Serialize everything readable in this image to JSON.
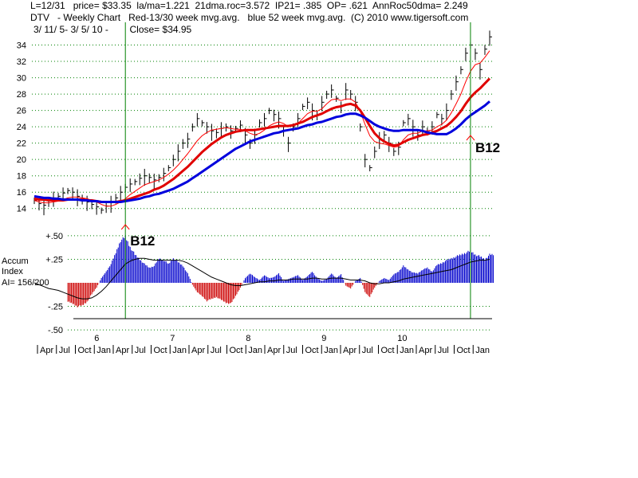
{
  "header": {
    "line1": "L=12/31   price= $33.35  la/ma=1.221  21dma.roc=3.572  IP21= .385  OP= .621  AnnRoc50dma= 2.249",
    "line2": "DTV   - Weekly Chart   Red-13/30 week mvg.avg.   blue 52 week mvg.avg.  (C) 2010 www.tigersoft.com",
    "line3": "3/ 11/ 5- 3/ 5/ 10 -        Close= $34.95"
  },
  "colors": {
    "ma13": "#ff0000",
    "ma30": "#e00000",
    "ma52": "#0000dd",
    "accum_pos": "#0000cc",
    "accum_neg": "#cc0000",
    "grid": "#008000",
    "signal_line": "#008000",
    "arrow": "#ff0000"
  },
  "chart_data": [
    {
      "type": "line",
      "title": "DTV - Weekly Chart",
      "x_axis": {
        "years": [
          "6",
          "7",
          "8",
          "9",
          "10"
        ],
        "month_ticks": [
          "Apr",
          "Jul",
          "Oct",
          "Jan",
          "Apr",
          "Jul",
          "Oct",
          "Jan",
          "Apr",
          "Jul",
          "Oct",
          "Jan",
          "Apr",
          "Jul",
          "Oct",
          "Jan",
          "Apr",
          "Jul",
          "Oct",
          "Jan",
          "Apr",
          "Jul",
          "Oct",
          "Jan"
        ],
        "range": [
          "2005-03",
          "2010-03"
        ]
      },
      "y_axis": {
        "ticks": [
          14,
          16,
          18,
          20,
          22,
          24,
          26,
          28,
          30,
          32,
          34
        ],
        "ylim": [
          13,
          36
        ]
      },
      "grid": "horizontal dotted",
      "series": [
        {
          "name": "Price",
          "style": "weekly high-low bars",
          "color": "#000000",
          "values": [
            15.0,
            14.6,
            14.4,
            14.9,
            15.3,
            15.5,
            15.9,
            16.2,
            16.0,
            15.5,
            15.2,
            14.8,
            14.5,
            14.2,
            13.8,
            14.3,
            14.7,
            15.3,
            16.0,
            16.6,
            17.0,
            17.3,
            17.7,
            18.0,
            17.8,
            17.5,
            17.8,
            18.3,
            19.0,
            20.0,
            21.0,
            22.0,
            22.5,
            24.0,
            25.0,
            24.5,
            24.0,
            23.5,
            23.3,
            23.8,
            24.0,
            23.5,
            23.8,
            24.2,
            23.0,
            22.0,
            23.0,
            24.5,
            25.0,
            26.0,
            25.5,
            25.0,
            23.5,
            22.0,
            24.0,
            25.0,
            26.5,
            27.0,
            26.0,
            25.5,
            27.0,
            28.0,
            28.5,
            27.5,
            26.5,
            28.5,
            28.0,
            27.0,
            24.0,
            20.0,
            19.0,
            21.0,
            22.5,
            23.0,
            22.0,
            21.0,
            21.5,
            24.5,
            25.0,
            24.0,
            23.0,
            24.0,
            23.5,
            24.0,
            25.5,
            25.0,
            26.0,
            28.0,
            29.5,
            31.0,
            33.0,
            34.0,
            33.0,
            31.0,
            33.5,
            35.0
          ]
        },
        {
          "name": "13 week mvg.avg.",
          "color": "#ff0000",
          "values": [
            15.0,
            14.8,
            14.7,
            14.7,
            14.8,
            14.9,
            15.1,
            15.3,
            15.4,
            15.4,
            15.3,
            15.2,
            15.0,
            14.8,
            14.5,
            14.3,
            14.3,
            14.5,
            14.8,
            15.2,
            15.7,
            16.1,
            16.5,
            16.9,
            17.1,
            17.3,
            17.5,
            17.8,
            18.2,
            18.7,
            19.3,
            20.0,
            20.7,
            21.5,
            22.3,
            22.9,
            23.3,
            23.6,
            23.7,
            23.8,
            23.9,
            23.8,
            23.7,
            23.7,
            23.5,
            23.2,
            23.0,
            23.2,
            23.6,
            24.1,
            24.4,
            24.6,
            24.4,
            24.0,
            24.1,
            24.4,
            25.0,
            25.6,
            25.9,
            25.9,
            26.2,
            26.8,
            27.3,
            27.4,
            27.2,
            27.4,
            27.4,
            27.0,
            25.9,
            24.3,
            22.9,
            22.2,
            22.0,
            21.9,
            21.7,
            21.5,
            21.6,
            22.4,
            23.0,
            23.2,
            23.2,
            23.5,
            23.5,
            23.6,
            24.0,
            24.3,
            24.8,
            25.7,
            26.8,
            28.0,
            29.5,
            30.8,
            31.6,
            31.8,
            32.5,
            33.3
          ]
        },
        {
          "name": "30 week mvg.avg.",
          "color": "#e00000",
          "values": [
            15.2,
            15.1,
            15.1,
            15.0,
            15.0,
            15.0,
            15.0,
            15.1,
            15.1,
            15.1,
            15.1,
            15.0,
            15.0,
            14.9,
            14.8,
            14.8,
            14.8,
            14.8,
            14.9,
            15.0,
            15.2,
            15.4,
            15.6,
            15.8,
            16.0,
            16.3,
            16.5,
            16.8,
            17.2,
            17.6,
            18.1,
            18.6,
            19.1,
            19.7,
            20.3,
            20.9,
            21.4,
            21.9,
            22.3,
            22.7,
            23.0,
            23.2,
            23.4,
            23.5,
            23.6,
            23.6,
            23.6,
            23.7,
            23.8,
            23.9,
            24.0,
            24.1,
            24.1,
            24.1,
            24.2,
            24.4,
            24.6,
            24.9,
            25.2,
            25.4,
            25.6,
            25.9,
            26.2,
            26.4,
            26.5,
            26.7,
            26.8,
            26.6,
            26.0,
            25.1,
            24.1,
            23.2,
            22.6,
            22.2,
            21.9,
            21.7,
            21.8,
            22.1,
            22.4,
            22.6,
            22.8,
            23.0,
            23.1,
            23.3,
            23.5,
            23.8,
            24.1,
            24.6,
            25.2,
            25.9,
            26.8,
            27.6,
            28.2,
            28.7,
            29.3,
            29.9
          ]
        },
        {
          "name": "52 week mvg.avg.",
          "color": "#0000dd",
          "values": [
            15.5,
            15.4,
            15.3,
            15.3,
            15.2,
            15.2,
            15.1,
            15.1,
            15.1,
            15.1,
            15.0,
            15.0,
            14.9,
            14.9,
            14.8,
            14.8,
            14.8,
            14.8,
            14.8,
            14.9,
            15.0,
            15.1,
            15.2,
            15.4,
            15.5,
            15.7,
            15.8,
            16.0,
            16.2,
            16.4,
            16.7,
            17.0,
            17.3,
            17.7,
            18.1,
            18.5,
            18.9,
            19.3,
            19.7,
            20.1,
            20.5,
            20.9,
            21.3,
            21.6,
            21.9,
            22.2,
            22.4,
            22.6,
            22.8,
            23.0,
            23.2,
            23.3,
            23.5,
            23.6,
            23.7,
            23.8,
            24.0,
            24.2,
            24.3,
            24.5,
            24.6,
            24.8,
            25.0,
            25.2,
            25.3,
            25.5,
            25.6,
            25.6,
            25.4,
            25.1,
            24.7,
            24.3,
            24.0,
            23.8,
            23.6,
            23.5,
            23.5,
            23.6,
            23.6,
            23.6,
            23.6,
            23.5,
            23.3,
            23.2,
            23.1,
            23.1,
            23.1,
            23.4,
            23.8,
            24.3,
            24.9,
            25.4,
            25.8,
            26.2,
            26.6,
            27.1
          ]
        }
      ],
      "annotations": [
        {
          "label": "B12",
          "x_index": 19
        },
        {
          "label": "B12",
          "x_index": 91
        }
      ]
    },
    {
      "type": "bar",
      "title": "Accum Index",
      "label_lines": [
        "Accum",
        "Index",
        "AI= 156/200"
      ],
      "y_axis": {
        "ticks": [
          "+.50",
          "+.25",
          "-.25",
          "-.50"
        ],
        "ylim": [
          -0.55,
          0.55
        ]
      },
      "grid": "horizontal dotted",
      "values": [
        -0.05,
        -0.1,
        -0.14,
        -0.16,
        -0.12,
        -0.1,
        -0.18,
        -0.2,
        -0.22,
        -0.25,
        -0.24,
        -0.2,
        -0.12,
        -0.05,
        0.05,
        0.12,
        0.2,
        0.32,
        0.45,
        0.49,
        0.38,
        0.3,
        0.25,
        0.2,
        0.16,
        0.18,
        0.26,
        0.24,
        0.2,
        0.26,
        0.22,
        0.18,
        0.1,
        -0.02,
        -0.1,
        -0.14,
        -0.19,
        -0.17,
        -0.15,
        -0.18,
        -0.21,
        -0.22,
        -0.14,
        -0.05,
        0.05,
        0.1,
        0.06,
        0.03,
        0.08,
        0.05,
        0.06,
        0.1,
        0.02,
        0.04,
        0.06,
        0.08,
        0.03,
        0.07,
        0.12,
        0.05,
        0.02,
        0.04,
        0.1,
        0.05,
        0.09,
        -0.03,
        -0.06,
        0.02,
        0.05,
        -0.1,
        -0.15,
        -0.05,
        0.02,
        0.05,
        0.03,
        0.09,
        0.12,
        0.18,
        0.14,
        0.11,
        0.1,
        0.14,
        0.16,
        0.12,
        0.19,
        0.21,
        0.24,
        0.26,
        0.28,
        0.3,
        0.32,
        0.34,
        0.3,
        0.28,
        0.25,
        0.3
      ],
      "smooth": [
        0.0,
        -0.02,
        -0.04,
        -0.06,
        -0.07,
        -0.08,
        -0.1,
        -0.12,
        -0.14,
        -0.16,
        -0.17,
        -0.17,
        -0.16,
        -0.13,
        -0.09,
        -0.04,
        0.02,
        0.08,
        0.14,
        0.2,
        0.23,
        0.25,
        0.26,
        0.26,
        0.25,
        0.24,
        0.24,
        0.24,
        0.24,
        0.24,
        0.24,
        0.23,
        0.21,
        0.18,
        0.15,
        0.12,
        0.09,
        0.06,
        0.04,
        0.02,
        0.0,
        -0.02,
        -0.03,
        -0.03,
        -0.02,
        -0.01,
        0.0,
        0.01,
        0.01,
        0.02,
        0.02,
        0.03,
        0.03,
        0.03,
        0.04,
        0.04,
        0.04,
        0.04,
        0.05,
        0.05,
        0.04,
        0.04,
        0.05,
        0.05,
        0.05,
        0.04,
        0.03,
        0.03,
        0.03,
        0.02,
        0.0,
        -0.01,
        -0.01,
        0.0,
        0.0,
        0.01,
        0.02,
        0.04,
        0.05,
        0.06,
        0.07,
        0.08,
        0.09,
        0.1,
        0.11,
        0.12,
        0.13,
        0.14,
        0.16,
        0.18,
        0.2,
        0.22,
        0.23,
        0.24,
        0.24,
        0.25
      ]
    }
  ]
}
